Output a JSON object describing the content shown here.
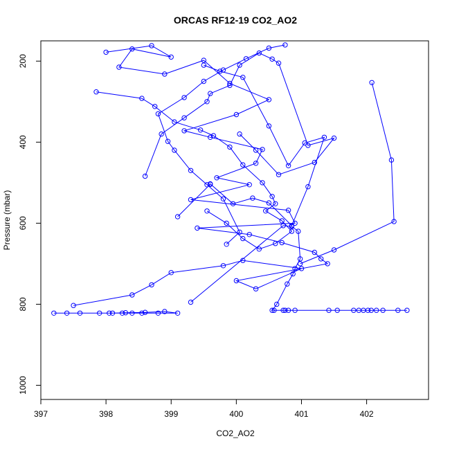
{
  "chart_data": {
    "type": "line",
    "title": "ORCAS RF12-19 CO2_AO2",
    "xlabel": "CO2_AO2",
    "ylabel": "Pressure (mbar)",
    "xlim": [
      397.0,
      402.95
    ],
    "ylim": [
      1035,
      150
    ],
    "y_reversed": true,
    "x_ticks": [
      397,
      398,
      399,
      400,
      401,
      402
    ],
    "y_ticks": [
      200,
      400,
      600,
      800,
      1000
    ],
    "x_tick_labels": [
      "397",
      "398",
      "399",
      "400",
      "401",
      "402"
    ],
    "y_tick_labels": [
      "200",
      "400",
      "600",
      "800",
      "1000"
    ],
    "grid": false,
    "legend": "none",
    "series_color": "#0000ff",
    "marker": "open-circle",
    "series": [
      {
        "x": [
          398.0,
          398.7,
          399.0,
          398.4,
          398.2,
          398.9,
          399.5,
          399.9,
          400.5,
          400.0,
          399.2,
          399.6,
          400.4,
          400.3,
          399.7,
          400.2,
          399.3,
          400.8,
          400.9,
          399.4,
          400.2,
          400.7,
          401.2,
          401.3,
          401.4,
          400.0,
          400.3,
          401.0,
          400.1,
          399.8,
          399.0,
          398.7,
          398.4,
          397.5
        ],
        "y": [
          178,
          162,
          190,
          170,
          215,
          232,
          198,
          255,
          295,
          332,
          372,
          388,
          418,
          452,
          488,
          505,
          542,
          568,
          600,
          612,
          628,
          648,
          672,
          688,
          700,
          742,
          762,
          712,
          692,
          705,
          722,
          752,
          777,
          803
        ]
      },
      {
        "x": [
          397.2,
          397.4,
          397.6,
          398.05,
          398.25,
          398.4,
          398.55,
          398.8,
          399.1,
          398.9,
          398.6,
          398.3,
          398.1,
          397.9
        ],
        "y": [
          822,
          822,
          822,
          822,
          822,
          822,
          822,
          822,
          822,
          818,
          820,
          821,
          822,
          822
        ]
      },
      {
        "x": [
          402.62,
          402.48,
          402.25,
          402.15,
          402.07,
          402.02,
          401.95,
          401.88,
          401.8,
          401.55,
          401.42,
          400.9,
          400.8,
          400.75,
          400.72,
          400.58,
          400.55,
          400.62,
          400.78,
          400.87,
          400.9,
          400.98,
          400.95,
          400.85,
          400.72,
          399.3
        ],
        "y": [
          815,
          815,
          815,
          815,
          815,
          815,
          815,
          815,
          815,
          815,
          815,
          815,
          815,
          815,
          815,
          815,
          815,
          800,
          750,
          725,
          712,
          688,
          620,
          608,
          606,
          795
        ]
      },
      {
        "x": [
          402.08,
          402.38,
          402.42,
          401.5,
          400.98
        ],
        "y": [
          253,
          444,
          596,
          666,
          700
        ]
      },
      {
        "x": [
          397.85,
          398.55,
          398.75,
          399.05,
          399.45,
          399.65,
          399.9,
          400.1,
          400.4,
          400.55,
          400.6,
          400.45,
          400.7,
          400.85,
          400.6,
          400.35,
          400.1,
          399.85,
          399.55
        ],
        "y": [
          276,
          292,
          312,
          350,
          370,
          384,
          412,
          456,
          500,
          534,
          552,
          570,
          594,
          620,
          650,
          664,
          638,
          600,
          570
        ]
      },
      {
        "x": [
          399.1,
          399.6,
          399.6,
          399.95,
          400.25,
          400.5,
          400.85,
          401.1,
          401.35,
          401.05,
          400.8,
          400.5,
          400.1,
          399.75,
          399.5
        ],
        "y": [
          584,
          504,
          503,
          552,
          538,
          550,
          606,
          510,
          388,
          402,
          458,
          360,
          240,
          225,
          210
        ]
      },
      {
        "x": [
          398.6,
          398.85,
          399.2,
          399.55,
          399.6,
          399.9,
          400.05,
          400.35,
          400.55,
          400.65,
          401.1,
          401.5,
          401.2,
          400.65,
          400.3,
          400.05
        ],
        "y": [
          484,
          380,
          340,
          300,
          280,
          260,
          210,
          180,
          195,
          205,
          408,
          390,
          450,
          480,
          420,
          380
        ]
      },
      {
        "x": [
          399.85,
          400.05,
          399.8,
          399.55,
          399.3,
          399.05,
          398.95,
          398.8,
          399.2,
          399.5,
          399.8,
          400.15,
          400.5,
          400.75
        ],
        "y": [
          652,
          622,
          540,
          505,
          470,
          420,
          398,
          330,
          290,
          250,
          222,
          194,
          168,
          160
        ]
      }
    ]
  }
}
